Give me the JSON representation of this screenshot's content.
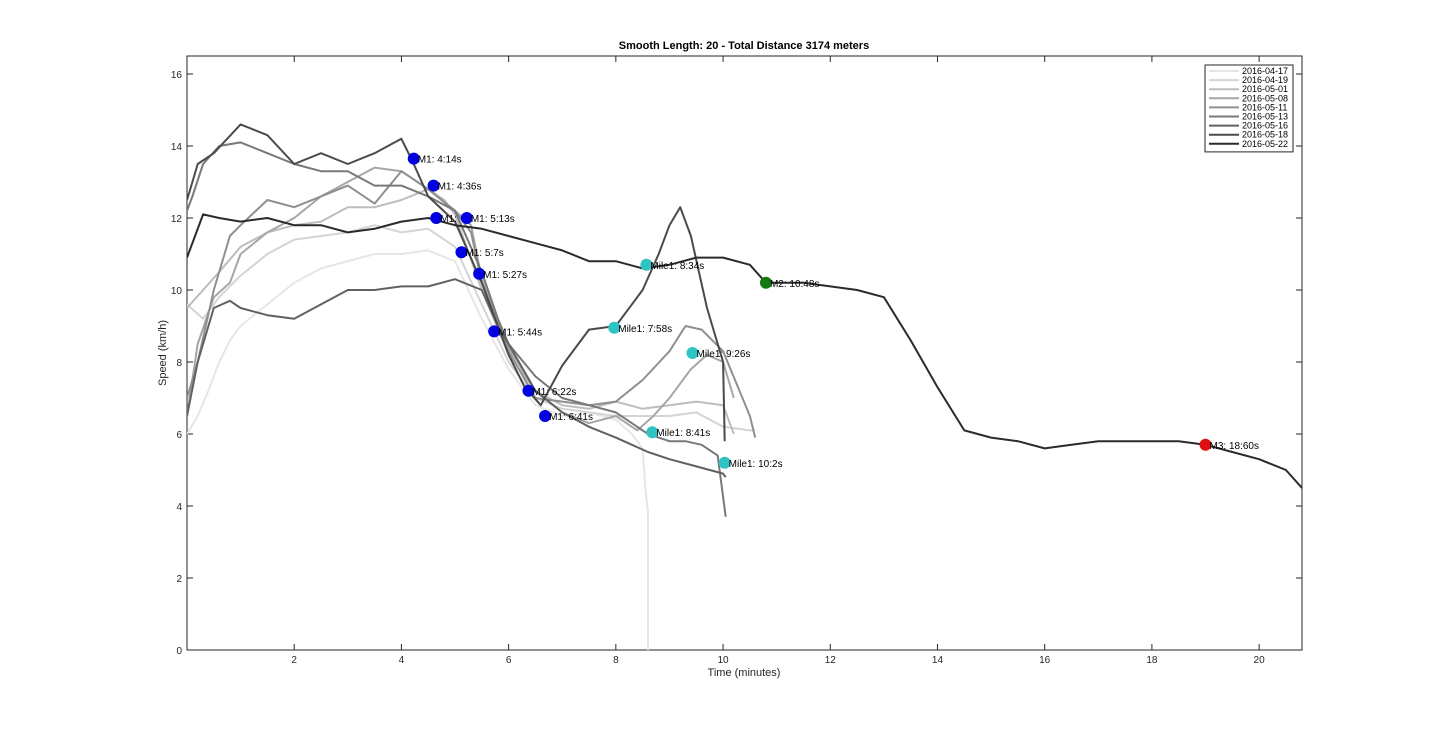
{
  "chart_data": {
    "type": "line",
    "title": "Smooth Length: 20 - Total Distance 3174 meters",
    "xlabel": "Time (minutes)",
    "ylabel": "Speed (km/h)",
    "xlim": [
      0,
      20.8
    ],
    "ylim": [
      0,
      16.5
    ],
    "xticks": [
      2,
      4,
      6,
      8,
      10,
      12,
      14,
      16,
      18,
      20
    ],
    "yticks": [
      0,
      2,
      4,
      6,
      8,
      10,
      12,
      14,
      16
    ],
    "grid": false,
    "legend_position": "top-right",
    "series": [
      {
        "name": "2016-04-17",
        "color": "#e6e6e6",
        "x": [
          0.0,
          0.2,
          0.4,
          0.6,
          0.8,
          1.0,
          1.5,
          2.0,
          2.5,
          3.0,
          3.5,
          4.0,
          4.5,
          5.0,
          5.5,
          6.0,
          6.5,
          7.0,
          7.5,
          8.0,
          8.3,
          8.5,
          8.55,
          8.6,
          8.6
        ],
        "y": [
          6.0,
          6.5,
          7.2,
          8.0,
          8.6,
          9.0,
          9.6,
          10.2,
          10.6,
          10.8,
          11.0,
          11.0,
          11.1,
          10.8,
          9.2,
          7.8,
          6.8,
          6.5,
          6.6,
          6.4,
          6.0,
          5.6,
          4.5,
          3.8,
          0.0
        ]
      },
      {
        "name": "2016-04-19",
        "color": "#d4d4d4",
        "x": [
          0.0,
          0.3,
          0.6,
          1.0,
          1.5,
          2.0,
          2.5,
          3.0,
          3.5,
          4.0,
          4.5,
          5.0,
          5.5,
          6.0,
          6.5,
          7.0,
          7.5,
          8.0,
          8.5,
          9.0,
          9.5,
          10.0,
          10.5,
          10.6
        ],
        "y": [
          9.6,
          9.2,
          9.8,
          10.4,
          11.0,
          11.4,
          11.5,
          11.6,
          11.8,
          11.6,
          11.7,
          11.2,
          9.6,
          8.0,
          7.0,
          6.7,
          6.6,
          6.5,
          6.5,
          6.5,
          6.6,
          6.2,
          6.1,
          6.1
        ]
      },
      {
        "name": "2016-05-01",
        "color": "#bdbdbd",
        "x": [
          0.0,
          0.3,
          0.6,
          1.0,
          1.5,
          2.0,
          2.5,
          3.0,
          3.5,
          4.0,
          4.5,
          4.8,
          5.0,
          5.5,
          6.0,
          6.5,
          7.0,
          7.5,
          8.0,
          8.5,
          9.0,
          9.5,
          10.0,
          10.2
        ],
        "y": [
          9.5,
          10.0,
          10.5,
          11.2,
          11.6,
          11.8,
          11.9,
          12.3,
          12.3,
          12.5,
          12.8,
          12.5,
          12.1,
          10.0,
          8.2,
          7.2,
          6.8,
          6.7,
          6.9,
          6.7,
          6.8,
          6.9,
          6.8,
          6.0
        ]
      },
      {
        "name": "2016-05-08",
        "color": "#a6a6a6",
        "x": [
          0.0,
          0.2,
          0.5,
          0.8,
          1.0,
          1.5,
          2.0,
          2.5,
          3.0,
          3.5,
          4.0,
          4.5,
          5.0,
          5.3,
          5.5,
          6.0,
          6.5,
          7.0,
          7.5,
          8.0,
          8.4,
          8.7,
          9.0,
          9.4,
          9.7,
          10.0,
          10.2
        ],
        "y": [
          6.5,
          8.5,
          9.8,
          10.2,
          11.0,
          11.6,
          12.0,
          12.6,
          13.0,
          13.4,
          13.3,
          12.8,
          12.2,
          11.8,
          10.3,
          8.4,
          7.2,
          6.6,
          6.3,
          6.5,
          6.1,
          6.5,
          7.0,
          7.8,
          8.2,
          8.0,
          7.0
        ]
      },
      {
        "name": "2016-05-11",
        "color": "#8f8f8f",
        "x": [
          0.0,
          0.2,
          0.5,
          0.8,
          1.0,
          1.5,
          2.0,
          2.5,
          3.0,
          3.5,
          4.0,
          4.5,
          5.0,
          5.3,
          5.5,
          6.0,
          6.5,
          7.0,
          7.5,
          8.0,
          8.5,
          9.0,
          9.3,
          9.6,
          10.0,
          10.5,
          10.6
        ],
        "y": [
          7.0,
          8.0,
          10.0,
          11.5,
          11.8,
          12.5,
          12.3,
          12.6,
          12.9,
          12.4,
          13.3,
          12.8,
          12.2,
          11.6,
          10.2,
          8.3,
          7.0,
          6.9,
          6.8,
          6.9,
          7.5,
          8.3,
          9.0,
          8.9,
          8.3,
          6.5,
          5.9
        ]
      },
      {
        "name": "2016-05-13",
        "color": "#787878",
        "x": [
          0.0,
          0.1,
          0.3,
          0.6,
          1.0,
          1.5,
          2.0,
          2.5,
          3.0,
          3.5,
          4.0,
          4.5,
          5.0,
          5.5,
          5.8,
          6.0,
          6.5,
          7.0,
          7.5,
          8.0,
          8.3,
          8.6,
          9.0,
          9.3,
          9.6,
          9.9,
          10.05
        ],
        "y": [
          12.2,
          12.6,
          13.5,
          14.0,
          14.1,
          13.8,
          13.5,
          13.3,
          13.3,
          12.9,
          12.9,
          12.6,
          12.2,
          10.5,
          9.2,
          8.5,
          7.6,
          7.0,
          6.8,
          6.6,
          6.3,
          6.0,
          5.8,
          5.8,
          5.7,
          5.4,
          3.7
        ]
      },
      {
        "name": "2016-05-16",
        "color": "#616161",
        "x": [
          0.0,
          0.2,
          0.5,
          0.8,
          1.0,
          1.5,
          2.0,
          2.5,
          3.0,
          3.5,
          4.0,
          4.5,
          5.0,
          5.5,
          5.8,
          6.0,
          6.5,
          7.0,
          7.5,
          8.0,
          8.3,
          8.6,
          9.0,
          9.5,
          10.0,
          10.05
        ],
        "y": [
          6.5,
          8.0,
          9.5,
          9.7,
          9.5,
          9.3,
          9.2,
          9.6,
          10.0,
          10.0,
          10.1,
          10.1,
          10.3,
          10.0,
          9.0,
          8.5,
          7.2,
          6.6,
          6.2,
          5.9,
          5.7,
          5.5,
          5.3,
          5.1,
          4.9,
          4.8
        ]
      },
      {
        "name": "2016-05-18",
        "color": "#4a4a4a",
        "x": [
          0.0,
          0.1,
          0.2,
          0.5,
          1.0,
          1.5,
          2.0,
          2.5,
          3.0,
          3.5,
          4.0,
          4.2,
          4.5,
          5.0,
          5.5,
          6.0,
          6.3,
          6.6,
          7.0,
          7.5,
          8.0,
          8.5,
          8.8,
          9.0,
          9.2,
          9.4,
          9.7,
          10.0,
          10.03
        ],
        "y": [
          12.5,
          13.0,
          13.5,
          13.8,
          14.6,
          14.3,
          13.5,
          13.8,
          13.5,
          13.8,
          14.2,
          13.6,
          12.6,
          11.9,
          10.2,
          8.2,
          7.3,
          6.8,
          7.9,
          8.9,
          9.0,
          10.0,
          11.0,
          11.8,
          12.3,
          11.5,
          9.5,
          8.0,
          5.8
        ]
      },
      {
        "name": "2016-05-22",
        "color": "#2b2b2b",
        "x": [
          0.0,
          0.3,
          0.6,
          1.0,
          1.5,
          2.0,
          2.5,
          3.0,
          3.5,
          4.0,
          4.5,
          5.0,
          5.5,
          6.0,
          6.5,
          7.0,
          7.5,
          8.0,
          8.5,
          9.0,
          9.5,
          10.0,
          10.5,
          10.8,
          11.5,
          12.0,
          12.5,
          13.0,
          13.5,
          14.0,
          14.5,
          15.0,
          15.5,
          16.0,
          16.5,
          17.0,
          17.5,
          18.0,
          18.5,
          19.0,
          19.5,
          20.0,
          20.5,
          20.8
        ],
        "y": [
          10.9,
          12.1,
          12.0,
          11.9,
          12.0,
          11.8,
          11.8,
          11.6,
          11.7,
          11.9,
          12.0,
          11.8,
          11.7,
          11.5,
          11.3,
          11.1,
          10.8,
          10.8,
          10.6,
          10.7,
          10.9,
          10.9,
          10.7,
          10.2,
          10.2,
          10.1,
          10.0,
          9.8,
          8.6,
          7.3,
          6.1,
          5.9,
          5.8,
          5.6,
          5.7,
          5.8,
          5.8,
          5.8,
          5.8,
          5.7,
          5.5,
          5.3,
          5.0,
          4.5
        ]
      }
    ],
    "annotations": [
      {
        "x": 4.23,
        "y": 13.65,
        "label": "M1: 4:14s",
        "color": "#0000e0"
      },
      {
        "x": 4.6,
        "y": 12.9,
        "label": "M1: 4:36s",
        "color": "#0000e0"
      },
      {
        "x": 4.65,
        "y": 12.0,
        "label": "M1:",
        "color": "#0000e0"
      },
      {
        "x": 5.22,
        "y": 12.0,
        "label": "M1: 5:13s",
        "color": "#0000e0"
      },
      {
        "x": 5.12,
        "y": 11.05,
        "label": "M1: 5:7s",
        "color": "#0000e0"
      },
      {
        "x": 5.45,
        "y": 10.45,
        "label": "M1: 5:27s",
        "color": "#0000e0"
      },
      {
        "x": 5.73,
        "y": 8.85,
        "label": "M1: 5:44s",
        "color": "#0000e0"
      },
      {
        "x": 6.37,
        "y": 7.2,
        "label": "M1: 6:22s",
        "color": "#0000e0"
      },
      {
        "x": 6.68,
        "y": 6.5,
        "label": "M1: 6:41s",
        "color": "#0000e0"
      },
      {
        "x": 8.57,
        "y": 10.7,
        "label": "Mile1: 8:34s",
        "color": "#2ec4c4"
      },
      {
        "x": 7.97,
        "y": 8.95,
        "label": "Mile1: 7:58s",
        "color": "#2ec4c4"
      },
      {
        "x": 9.43,
        "y": 8.25,
        "label": "Mile1: 9:26s",
        "color": "#2ec4c4"
      },
      {
        "x": 8.68,
        "y": 6.05,
        "label": "Mile1: 8:41s",
        "color": "#2ec4c4"
      },
      {
        "x": 10.03,
        "y": 5.2,
        "label": "Mile1: 10:2s",
        "color": "#2ec4c4"
      },
      {
        "x": 10.8,
        "y": 10.2,
        "label": "M2: 10:48s",
        "color": "#0f7a0f"
      },
      {
        "x": 19.0,
        "y": 5.7,
        "label": "M3: 18:60s",
        "color": "#e01010"
      }
    ]
  }
}
